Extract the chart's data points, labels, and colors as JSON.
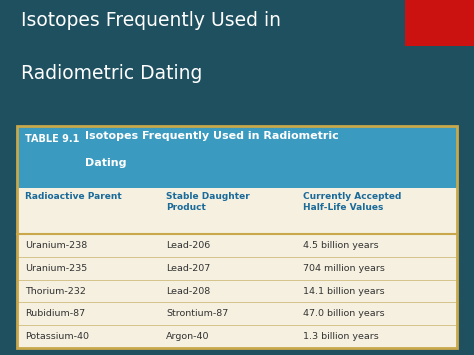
{
  "title_line1": "Isotopes Frequently Used in",
  "title_line2": "Radiometric Dating",
  "bg_color": "#1e5060",
  "table_header_bg": "#3a9abf",
  "table_body_bg": "#f5f0e0",
  "table_border_color": "#c8a84b",
  "table_label": "TABLE 9.1",
  "table_title_part1": "Isotopes Frequently Used in Radiometric",
  "table_title_part2": "Dating",
  "col_headers": [
    "Radioactive Parent",
    "Stable Daughter\nProduct",
    "Currently Accepted\nHalf-Life Values"
  ],
  "rows": [
    [
      "Uranium-238",
      "Lead-206",
      "4.5 billion years"
    ],
    [
      "Uranium-235",
      "Lead-207",
      "704 million years"
    ],
    [
      "Thorium-232",
      "Lead-208",
      "14.1 billion years"
    ],
    [
      "Rubidium-87",
      "Strontium-87",
      "47.0 billion years"
    ],
    [
      "Potassium-40",
      "Argon-40",
      "1.3 billion years"
    ]
  ],
  "red_rect_color": "#cc1111",
  "title_color": "#ffffff",
  "header_text_color": "#ffffff",
  "col_header_color": "#1a6a9a",
  "body_text_color": "#333333",
  "row_line_color": "#d4c48a"
}
